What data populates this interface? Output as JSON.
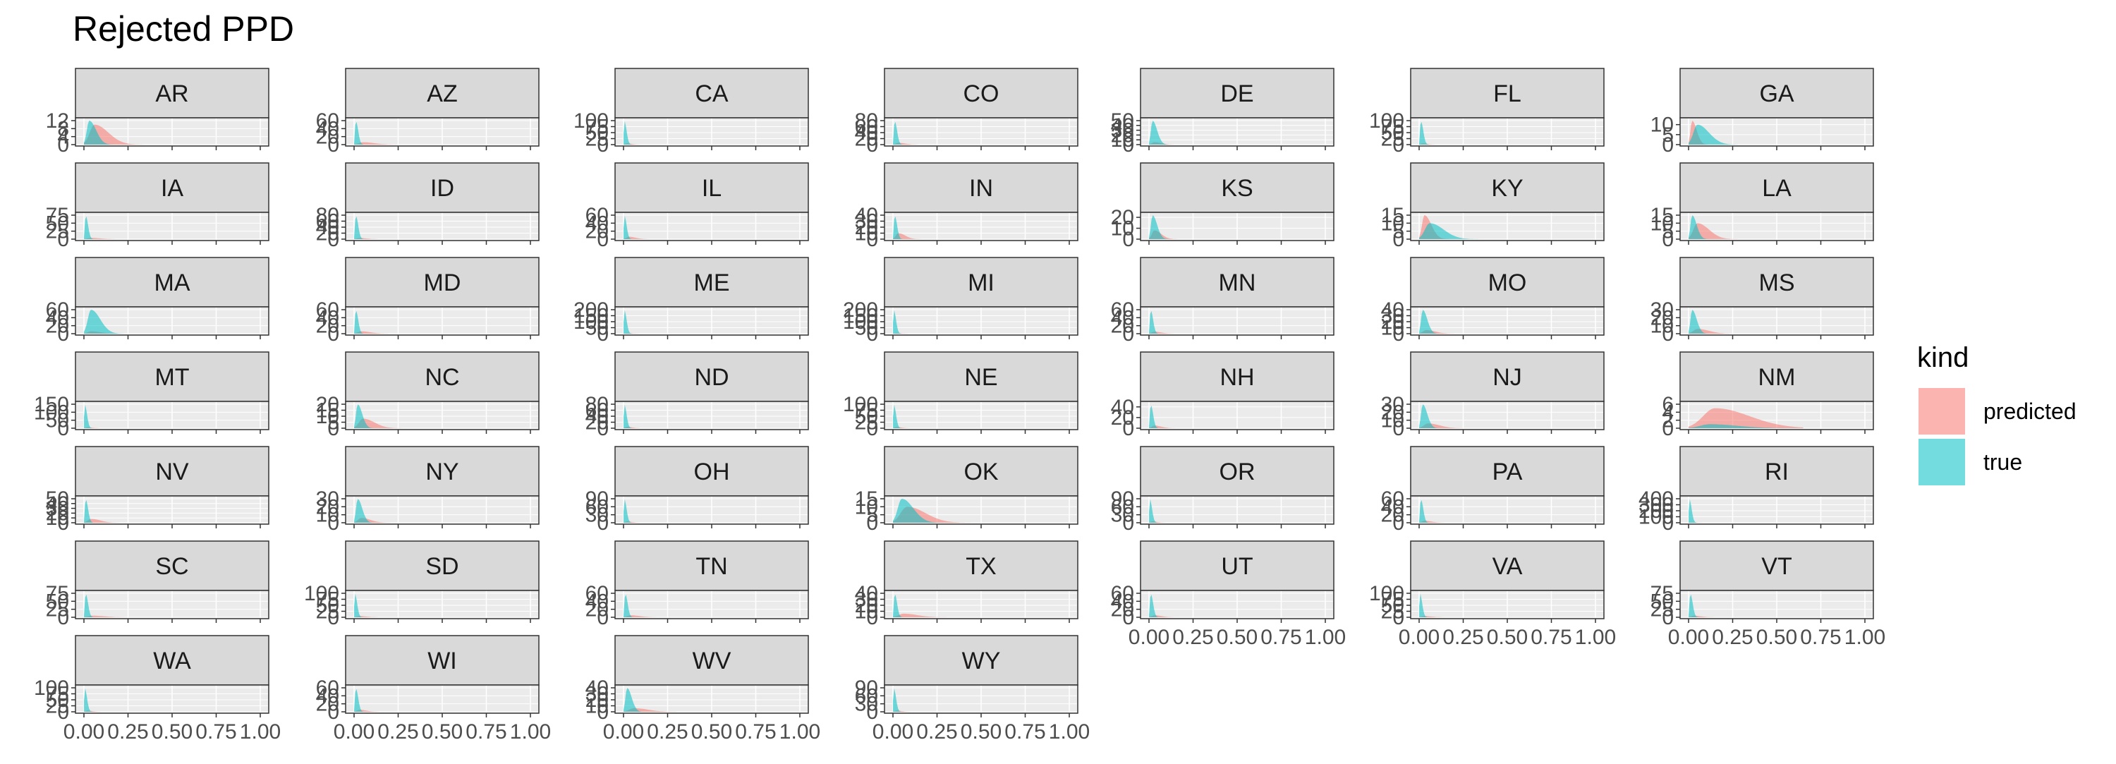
{
  "chart_data": {
    "type": "area",
    "title": "Rejected PPD",
    "xlabel": "",
    "ylabel": "",
    "xlim": [
      0,
      1
    ],
    "x_tick_labels": [
      "0.00",
      "0.25",
      "0.50",
      "0.75",
      "1.00"
    ],
    "grid": true,
    "legend": {
      "title": "kind",
      "position": "right",
      "entries": [
        {
          "label": "predicted",
          "color": "#F8766D"
        },
        {
          "label": "true",
          "color": "#00BFC4"
        }
      ]
    },
    "facets": [
      {
        "label": "AR",
        "yticks": [
          "0",
          "4",
          "8",
          "12"
        ],
        "ymax": 12,
        "pred_peak": [
          0.06,
          10
        ],
        "true_peak": [
          0.03,
          12
        ]
      },
      {
        "label": "AZ",
        "yticks": [
          "0",
          "20",
          "40",
          "60"
        ],
        "ymax": 60,
        "pred_peak": [
          0.05,
          6
        ],
        "true_peak": [
          0.01,
          60
        ]
      },
      {
        "label": "CA",
        "yticks": [
          "0",
          "25",
          "50",
          "75",
          "100"
        ],
        "ymax": 100,
        "pred_peak": [
          0.02,
          5
        ],
        "true_peak": [
          0.005,
          100
        ]
      },
      {
        "label": "CO",
        "yticks": [
          "0",
          "20",
          "40",
          "60",
          "80"
        ],
        "ymax": 80,
        "pred_peak": [
          0.03,
          6
        ],
        "true_peak": [
          0.01,
          80
        ]
      },
      {
        "label": "DE",
        "yticks": [
          "0",
          "10",
          "20",
          "30",
          "40",
          "50"
        ],
        "ymax": 50,
        "pred_peak": [
          0.03,
          5
        ],
        "true_peak": [
          0.02,
          50
        ]
      },
      {
        "label": "FL",
        "yticks": [
          "0",
          "25",
          "50",
          "75",
          "100"
        ],
        "ymax": 100,
        "pred_peak": [
          0.02,
          5
        ],
        "true_peak": [
          0.01,
          100
        ]
      },
      {
        "label": "GA",
        "yticks": [
          "0",
          "5",
          "10"
        ],
        "ymax": 12,
        "pred_peak": [
          0.02,
          12
        ],
        "true_peak": [
          0.05,
          10
        ]
      },
      {
        "label": "IA",
        "yticks": [
          "0",
          "25",
          "50",
          "75"
        ],
        "ymax": 75,
        "pred_peak": [
          0.04,
          4
        ],
        "true_peak": [
          0.01,
          75
        ]
      },
      {
        "label": "ID",
        "yticks": [
          "0",
          "20",
          "40",
          "60",
          "80"
        ],
        "ymax": 80,
        "pred_peak": [
          0.03,
          4
        ],
        "true_peak": [
          0.01,
          80
        ]
      },
      {
        "label": "IL",
        "yticks": [
          "0",
          "20",
          "40",
          "60"
        ],
        "ymax": 60,
        "pred_peak": [
          0.03,
          6
        ],
        "true_peak": [
          0.005,
          60
        ]
      },
      {
        "label": "IN",
        "yticks": [
          "0",
          "10",
          "20",
          "30",
          "40"
        ],
        "ymax": 40,
        "pred_peak": [
          0.03,
          10
        ],
        "true_peak": [
          0.01,
          40
        ]
      },
      {
        "label": "KS",
        "yticks": [
          "0",
          "10",
          "20"
        ],
        "ymax": 22,
        "pred_peak": [
          0.03,
          8
        ],
        "true_peak": [
          0.02,
          22
        ]
      },
      {
        "label": "KY",
        "yticks": [
          "0",
          "5",
          "10",
          "15"
        ],
        "ymax": 15,
        "pred_peak": [
          0.03,
          15
        ],
        "true_peak": [
          0.06,
          10
        ]
      },
      {
        "label": "LA",
        "yticks": [
          "0",
          "5",
          "10",
          "15"
        ],
        "ymax": 15,
        "pred_peak": [
          0.05,
          10
        ],
        "true_peak": [
          0.02,
          15
        ]
      },
      {
        "label": "MA",
        "yticks": [
          "0",
          "20",
          "40",
          "60"
        ],
        "ymax": 60,
        "pred_peak": [
          0.04,
          6
        ],
        "true_peak": [
          0.04,
          60
        ]
      },
      {
        "label": "MD",
        "yticks": [
          "0",
          "20",
          "40",
          "60"
        ],
        "ymax": 60,
        "pred_peak": [
          0.04,
          6
        ],
        "true_peak": [
          0.01,
          60
        ]
      },
      {
        "label": "ME",
        "yticks": [
          "0",
          "50",
          "100",
          "150",
          "200"
        ],
        "ymax": 200,
        "pred_peak": [
          0.02,
          5
        ],
        "true_peak": [
          0.005,
          200
        ]
      },
      {
        "label": "MI",
        "yticks": [
          "0",
          "50",
          "100",
          "150",
          "200"
        ],
        "ymax": 200,
        "pred_peak": [
          0.02,
          5
        ],
        "true_peak": [
          0.005,
          200
        ]
      },
      {
        "label": "MN",
        "yticks": [
          "0",
          "20",
          "40",
          "60"
        ],
        "ymax": 60,
        "pred_peak": [
          0.03,
          5
        ],
        "true_peak": [
          0.01,
          60
        ]
      },
      {
        "label": "MO",
        "yticks": [
          "0",
          "10",
          "20",
          "30",
          "40"
        ],
        "ymax": 40,
        "pred_peak": [
          0.04,
          6
        ],
        "true_peak": [
          0.02,
          40
        ]
      },
      {
        "label": "MS",
        "yticks": [
          "0",
          "10",
          "20",
          "30"
        ],
        "ymax": 30,
        "pred_peak": [
          0.05,
          6
        ],
        "true_peak": [
          0.02,
          30
        ]
      },
      {
        "label": "MT",
        "yticks": [
          "0",
          "50",
          "100",
          "150"
        ],
        "ymax": 150,
        "pred_peak": [
          0.02,
          5
        ],
        "true_peak": [
          0.005,
          150
        ]
      },
      {
        "label": "NC",
        "yticks": [
          "0",
          "5",
          "10",
          "15",
          "20"
        ],
        "ymax": 20,
        "pred_peak": [
          0.05,
          8
        ],
        "true_peak": [
          0.02,
          20
        ]
      },
      {
        "label": "ND",
        "yticks": [
          "0",
          "20",
          "40",
          "60",
          "80"
        ],
        "ymax": 80,
        "pred_peak": [
          0.02,
          5
        ],
        "true_peak": [
          0.005,
          80
        ]
      },
      {
        "label": "NE",
        "yticks": [
          "0",
          "25",
          "50",
          "75",
          "100"
        ],
        "ymax": 100,
        "pred_peak": [
          0.02,
          5
        ],
        "true_peak": [
          0.005,
          100
        ]
      },
      {
        "label": "NH",
        "yticks": [
          "0",
          "20",
          "40"
        ],
        "ymax": 45,
        "pred_peak": [
          0.03,
          5
        ],
        "true_peak": [
          0.01,
          45
        ]
      },
      {
        "label": "NJ",
        "yticks": [
          "0",
          "10",
          "20",
          "30"
        ],
        "ymax": 30,
        "pred_peak": [
          0.05,
          6
        ],
        "true_peak": [
          0.02,
          30
        ]
      },
      {
        "label": "NM",
        "yticks": [
          "0",
          "2",
          "4",
          "6"
        ],
        "ymax": 6,
        "pred_peak": [
          0.15,
          5
        ],
        "true_peak": [
          0.12,
          1
        ]
      },
      {
        "label": "NV",
        "yticks": [
          "0",
          "10",
          "20",
          "30",
          "40",
          "50"
        ],
        "ymax": 50,
        "pred_peak": [
          0.04,
          8
        ],
        "true_peak": [
          0.01,
          50
        ]
      },
      {
        "label": "NY",
        "yticks": [
          "0",
          "10",
          "20",
          "30"
        ],
        "ymax": 30,
        "pred_peak": [
          0.04,
          6
        ],
        "true_peak": [
          0.02,
          30
        ]
      },
      {
        "label": "OH",
        "yticks": [
          "0",
          "30",
          "60",
          "90"
        ],
        "ymax": 90,
        "pred_peak": [
          0.02,
          5
        ],
        "true_peak": [
          0.005,
          90
        ]
      },
      {
        "label": "OK",
        "yticks": [
          "0",
          "5",
          "10",
          "15"
        ],
        "ymax": 15,
        "pred_peak": [
          0.08,
          10
        ],
        "true_peak": [
          0.05,
          15
        ]
      },
      {
        "label": "OR",
        "yticks": [
          "0",
          "30",
          "60",
          "90"
        ],
        "ymax": 90,
        "pred_peak": [
          0.02,
          5
        ],
        "true_peak": [
          0.005,
          90
        ]
      },
      {
        "label": "PA",
        "yticks": [
          "0",
          "20",
          "40",
          "60"
        ],
        "ymax": 60,
        "pred_peak": [
          0.03,
          5
        ],
        "true_peak": [
          0.01,
          60
        ]
      },
      {
        "label": "RI",
        "yticks": [
          "0",
          "100",
          "200",
          "300",
          "400"
        ],
        "ymax": 400,
        "pred_peak": [
          0.02,
          5
        ],
        "true_peak": [
          0.005,
          400
        ]
      },
      {
        "label": "SC",
        "yticks": [
          "0",
          "25",
          "50",
          "75"
        ],
        "ymax": 75,
        "pred_peak": [
          0.05,
          5
        ],
        "true_peak": [
          0.01,
          75
        ]
      },
      {
        "label": "SD",
        "yticks": [
          "0",
          "25",
          "50",
          "75",
          "100"
        ],
        "ymax": 100,
        "pred_peak": [
          0.03,
          5
        ],
        "true_peak": [
          0.005,
          100
        ]
      },
      {
        "label": "TN",
        "yticks": [
          "0",
          "20",
          "40",
          "60"
        ],
        "ymax": 60,
        "pred_peak": [
          0.04,
          5
        ],
        "true_peak": [
          0.01,
          60
        ]
      },
      {
        "label": "TX",
        "yticks": [
          "0",
          "10",
          "20",
          "30",
          "40"
        ],
        "ymax": 40,
        "pred_peak": [
          0.06,
          6
        ],
        "true_peak": [
          0.01,
          40
        ]
      },
      {
        "label": "UT",
        "yticks": [
          "0",
          "20",
          "40",
          "60"
        ],
        "ymax": 60,
        "pred_peak": [
          0.03,
          5
        ],
        "true_peak": [
          0.01,
          60
        ]
      },
      {
        "label": "VA",
        "yticks": [
          "0",
          "25",
          "50",
          "75",
          "100"
        ],
        "ymax": 100,
        "pred_peak": [
          0.03,
          5
        ],
        "true_peak": [
          0.005,
          100
        ]
      },
      {
        "label": "VT",
        "yticks": [
          "0",
          "25",
          "50",
          "75"
        ],
        "ymax": 75,
        "pred_peak": [
          0.03,
          5
        ],
        "true_peak": [
          0.01,
          75
        ]
      },
      {
        "label": "WA",
        "yticks": [
          "0",
          "25",
          "50",
          "75",
          "100"
        ],
        "ymax": 100,
        "pred_peak": [
          0.02,
          5
        ],
        "true_peak": [
          0.005,
          100
        ]
      },
      {
        "label": "WI",
        "yticks": [
          "0",
          "20",
          "40",
          "60"
        ],
        "ymax": 60,
        "pred_peak": [
          0.03,
          5
        ],
        "true_peak": [
          0.01,
          60
        ]
      },
      {
        "label": "WV",
        "yticks": [
          "0",
          "10",
          "20",
          "30",
          "40"
        ],
        "ymax": 40,
        "pred_peak": [
          0.06,
          6
        ],
        "true_peak": [
          0.02,
          40
        ]
      },
      {
        "label": "WY",
        "yticks": [
          "0",
          "30",
          "60",
          "90"
        ],
        "ymax": 90,
        "pred_peak": [
          0.02,
          5
        ],
        "true_peak": [
          0.005,
          90
        ]
      }
    ]
  }
}
